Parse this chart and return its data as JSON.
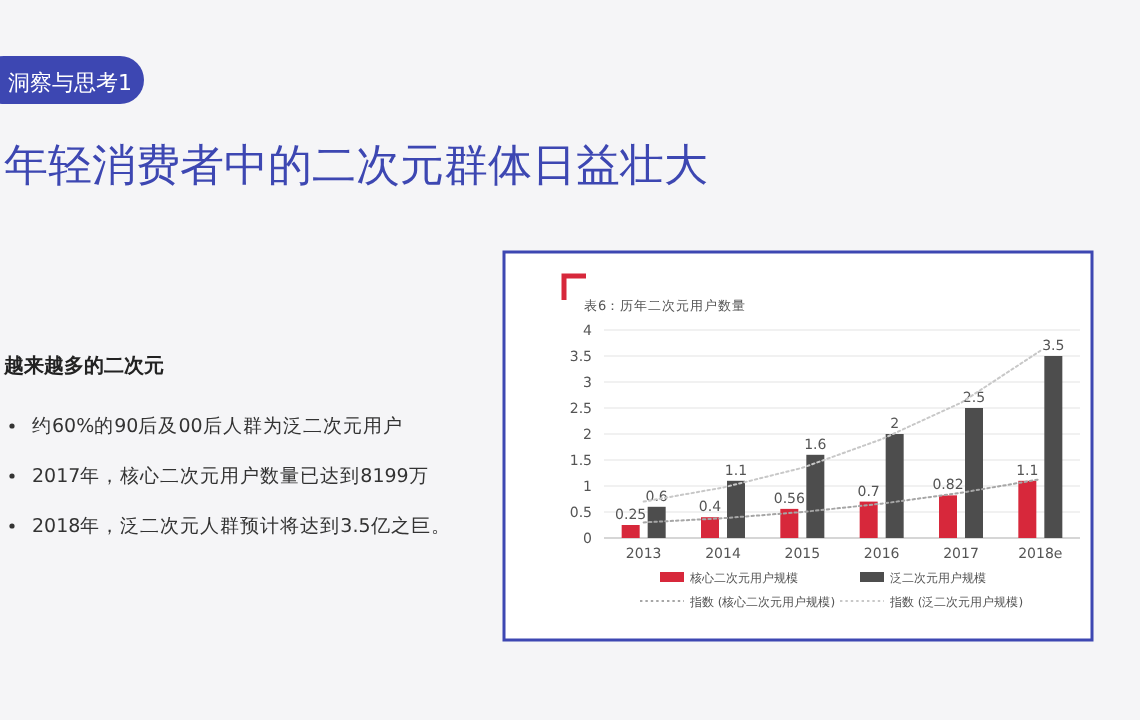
{
  "chart_data": {
    "type": "bar",
    "title": "表6：历年二次元用户数量",
    "annotations": [
      "洞察与思考1",
      "年轻消费者中的二次元群体日益壮大",
      "越来越多的二次元",
      "约60%的90后及00后人群为泛二次元用户",
      "2017年，核心二次元用户数量已达到8199万",
      "2018年，泛二次元人群预计将达到3.5亿之巨。"
    ],
    "categories": [
      "2013",
      "2014",
      "2015",
      "2016",
      "2017",
      "2018e"
    ],
    "series": [
      {
        "name": "核心二次元用户规模",
        "color": "#d7283b",
        "values": [
          0.25,
          0.4,
          0.56,
          0.7,
          0.82,
          1.1
        ],
        "value_labels": [
          "0.25",
          "0.4",
          "0.56",
          "0.7",
          "0.82",
          "1.1"
        ]
      },
      {
        "name": "泛二次元用户规模",
        "color": "#4d4d4d",
        "values": [
          0.6,
          1.1,
          1.6,
          2,
          2.5,
          3.5
        ],
        "value_labels": [
          "0.6",
          "1.1",
          "1.6",
          "2",
          "2.5",
          "3.5"
        ]
      },
      {
        "name": "指数 (核心二次元用户规模)",
        "type": "line",
        "line_style": "dotted",
        "color": "#a6a6a6",
        "values": [
          0.3,
          0.38,
          0.5,
          0.66,
          0.87,
          1.13
        ]
      },
      {
        "name": "指数 (泛二次元用户规模)",
        "type": "line",
        "line_style": "dotted",
        "color": "#c8c8c8",
        "values": [
          0.7,
          0.97,
          1.35,
          1.9,
          2.6,
          3.6
        ]
      }
    ],
    "ylim": [
      0,
      4
    ],
    "yticks": [
      0,
      0.5,
      1,
      1.5,
      2,
      2.5,
      3,
      3.5,
      4
    ],
    "grid": "y",
    "legend": "bottom"
  }
}
